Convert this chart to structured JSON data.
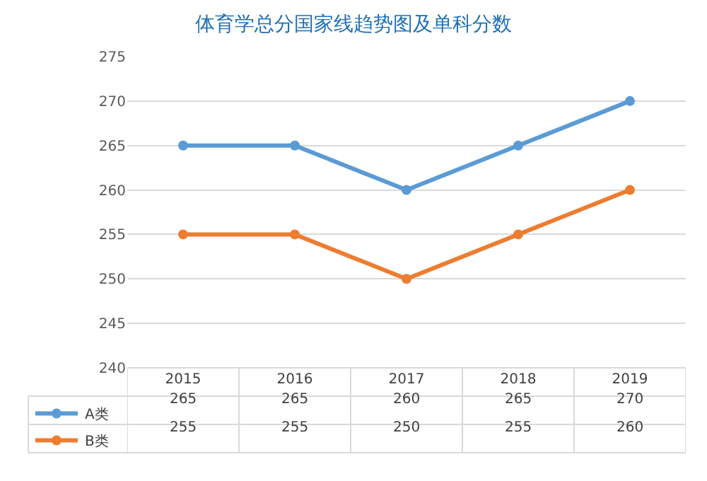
{
  "chart_data": {
    "type": "line",
    "title": "体育学总分国家线趋势图及单科分数",
    "categories": [
      "2015",
      "2016",
      "2017",
      "2018",
      "2019"
    ],
    "series": [
      {
        "name": "A类",
        "color": "#5b9bd5",
        "values": [
          265,
          265,
          260,
          265,
          270
        ]
      },
      {
        "name": "B类",
        "color": "#ed7d31",
        "values": [
          255,
          255,
          250,
          255,
          260
        ]
      }
    ],
    "ylim": [
      240,
      275
    ],
    "yticks": [
      240,
      245,
      250,
      255,
      260,
      265,
      270,
      275
    ],
    "grid": "y",
    "legend": "bottom",
    "marker": "circle",
    "line_style": "solid",
    "data_labels": true
  }
}
